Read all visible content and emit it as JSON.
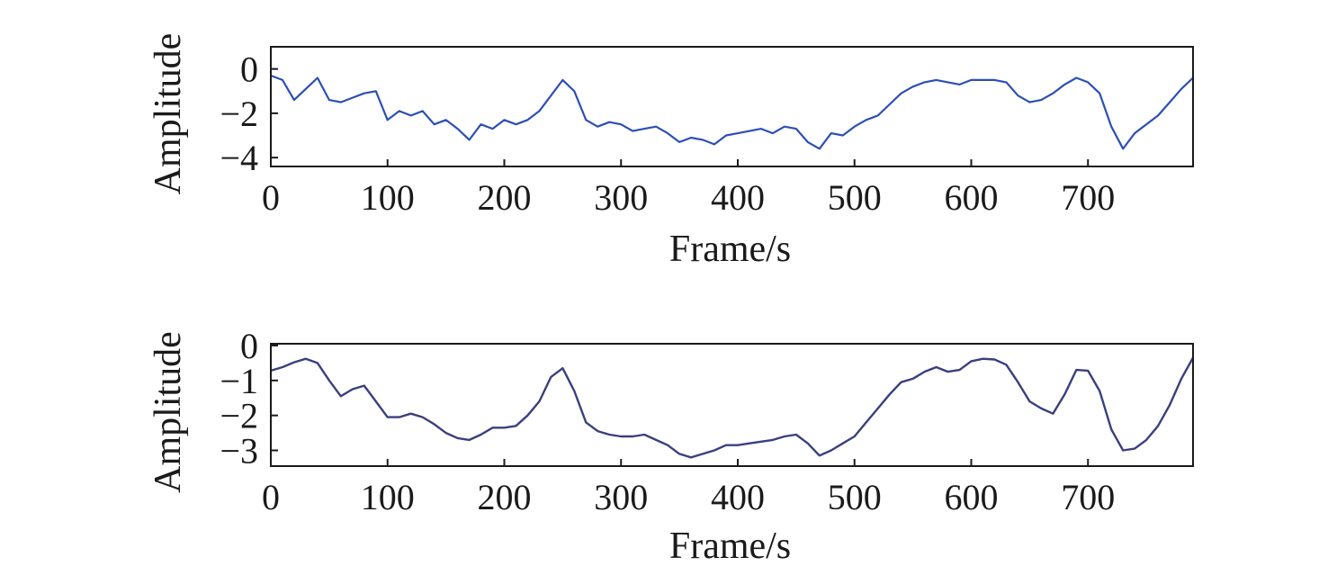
{
  "chart_data": [
    {
      "type": "line",
      "title": "",
      "xlabel": "Frame/s",
      "ylabel": "Amplitude",
      "xlim": [
        0,
        790
      ],
      "ylim": [
        -4.4,
        1.0
      ],
      "xticks": [
        0,
        100,
        200,
        300,
        400,
        500,
        600,
        700
      ],
      "yticks": [
        0,
        -2,
        -4
      ],
      "x_tick_labels": [
        "0",
        "100",
        "200",
        "300",
        "400",
        "500",
        "600",
        "700"
      ],
      "y_tick_labels": [
        "0",
        "−2",
        "−4"
      ],
      "grid": false,
      "line_color": "#2c4fb4",
      "series": [
        {
          "x": [
            0,
            10,
            20,
            30,
            40,
            50,
            60,
            70,
            80,
            90,
            100,
            110,
            120,
            130,
            140,
            150,
            160,
            170,
            180,
            190,
            200,
            210,
            220,
            230,
            240,
            250,
            260,
            270,
            280,
            290,
            300,
            310,
            320,
            330,
            340,
            350,
            360,
            370,
            380,
            390,
            400,
            410,
            420,
            430,
            440,
            450,
            460,
            470,
            480,
            490,
            500,
            510,
            520,
            530,
            540,
            550,
            560,
            570,
            580,
            590,
            600,
            610,
            620,
            630,
            640,
            650,
            660,
            670,
            680,
            690,
            700,
            710,
            720,
            730,
            740,
            750,
            760,
            770,
            780,
            790
          ],
          "values": [
            -0.3,
            -0.5,
            -1.4,
            -0.9,
            -0.4,
            -1.4,
            -1.5,
            -1.3,
            -1.1,
            -1.0,
            -2.3,
            -1.9,
            -2.1,
            -1.9,
            -2.5,
            -2.3,
            -2.7,
            -3.2,
            -2.5,
            -2.7,
            -2.3,
            -2.5,
            -2.3,
            -1.9,
            -1.2,
            -0.5,
            -1.0,
            -2.3,
            -2.6,
            -2.4,
            -2.5,
            -2.8,
            -2.7,
            -2.6,
            -2.9,
            -3.3,
            -3.1,
            -3.2,
            -3.4,
            -3.0,
            -2.9,
            -2.8,
            -2.7,
            -2.9,
            -2.6,
            -2.7,
            -3.3,
            -3.6,
            -2.9,
            -3.0,
            -2.6,
            -2.3,
            -2.1,
            -1.6,
            -1.1,
            -0.8,
            -0.6,
            -0.5,
            -0.6,
            -0.7,
            -0.5,
            -0.5,
            -0.5,
            -0.6,
            -1.2,
            -1.5,
            -1.4,
            -1.1,
            -0.7,
            -0.4,
            -0.6,
            -1.1,
            -2.6,
            -3.6,
            -2.9,
            -2.5,
            -2.1,
            -1.5,
            -0.9,
            -0.4
          ]
        }
      ]
    },
    {
      "type": "line",
      "title": "",
      "xlabel": "Frame/s",
      "ylabel": "Amplitude",
      "xlim": [
        0,
        790
      ],
      "ylim": [
        -3.45,
        0.05
      ],
      "xticks": [
        0,
        100,
        200,
        300,
        400,
        500,
        600,
        700
      ],
      "yticks": [
        0,
        -1,
        -2,
        -3
      ],
      "x_tick_labels": [
        "0",
        "100",
        "200",
        "300",
        "400",
        "500",
        "600",
        "700"
      ],
      "y_tick_labels": [
        "0",
        "−1",
        "−2",
        "−3"
      ],
      "grid": false,
      "line_color": "#3a3f7e",
      "series": [
        {
          "x": [
            0,
            10,
            20,
            30,
            40,
            50,
            60,
            70,
            80,
            90,
            100,
            110,
            120,
            130,
            140,
            150,
            160,
            170,
            180,
            190,
            200,
            210,
            220,
            230,
            240,
            250,
            260,
            270,
            280,
            290,
            300,
            310,
            320,
            330,
            340,
            350,
            360,
            370,
            380,
            390,
            400,
            410,
            420,
            430,
            440,
            450,
            460,
            470,
            480,
            490,
            500,
            510,
            520,
            530,
            540,
            550,
            560,
            570,
            580,
            590,
            600,
            610,
            620,
            630,
            640,
            650,
            660,
            670,
            680,
            690,
            700,
            710,
            720,
            730,
            740,
            750,
            760,
            770,
            780,
            790
          ],
          "values": [
            -0.72,
            -0.62,
            -0.48,
            -0.38,
            -0.5,
            -1.0,
            -1.45,
            -1.25,
            -1.15,
            -1.6,
            -2.05,
            -2.05,
            -1.95,
            -2.05,
            -2.25,
            -2.5,
            -2.65,
            -2.7,
            -2.55,
            -2.35,
            -2.35,
            -2.3,
            -2.0,
            -1.6,
            -0.9,
            -0.65,
            -1.3,
            -2.2,
            -2.45,
            -2.55,
            -2.6,
            -2.6,
            -2.55,
            -2.7,
            -2.85,
            -3.1,
            -3.2,
            -3.1,
            -3.0,
            -2.85,
            -2.85,
            -2.8,
            -2.75,
            -2.7,
            -2.6,
            -2.55,
            -2.8,
            -3.15,
            -3.0,
            -2.8,
            -2.6,
            -2.2,
            -1.8,
            -1.4,
            -1.05,
            -0.95,
            -0.75,
            -0.62,
            -0.75,
            -0.7,
            -0.45,
            -0.38,
            -0.4,
            -0.55,
            -1.05,
            -1.6,
            -1.8,
            -1.95,
            -1.4,
            -0.7,
            -0.72,
            -1.3,
            -2.4,
            -3.0,
            -2.95,
            -2.7,
            -2.3,
            -1.7,
            -0.95,
            -0.35
          ]
        }
      ]
    }
  ]
}
